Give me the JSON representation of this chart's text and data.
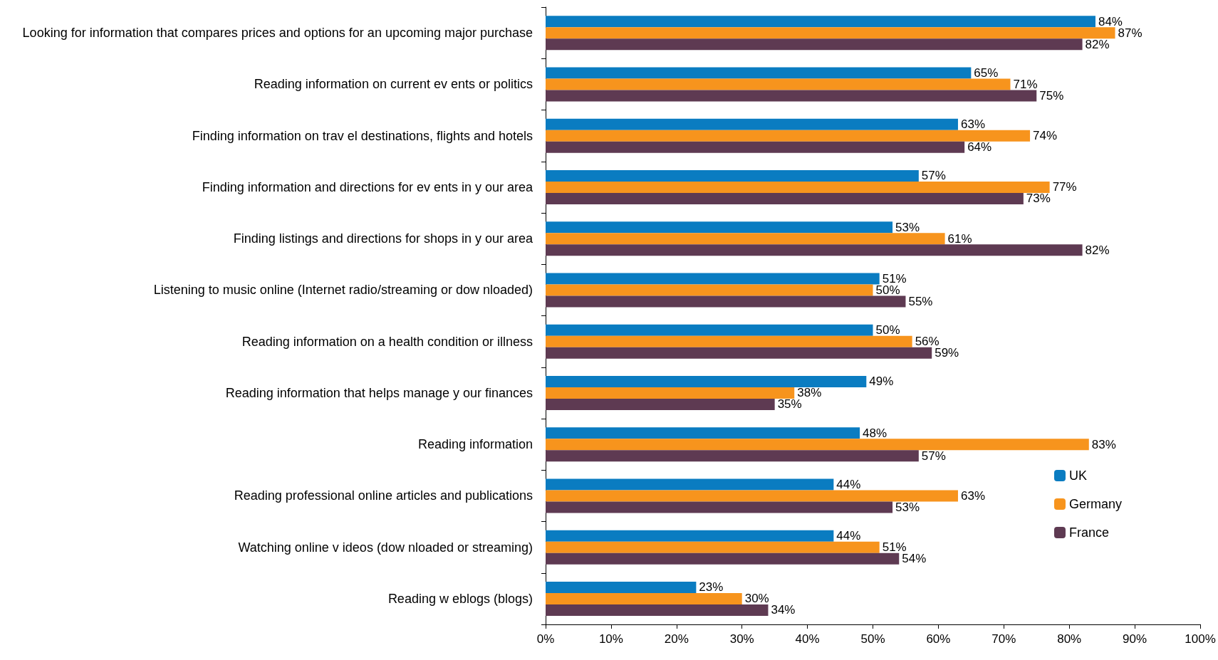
{
  "chart_data": {
    "type": "bar",
    "orientation": "horizontal",
    "categories": [
      "Looking for information that compares prices and options for an upcoming major purchase",
      "Reading information on current ev ents or politics",
      "Finding information on trav el destinations, flights and hotels",
      "Finding information and directions for ev ents in y our area",
      "Finding listings and directions for shops in y our area",
      "Listening to music online (Internet radio/streaming or dow nloaded)",
      "Reading information on a health condition or illness",
      "Reading information that helps manage y our finances",
      "Reading information",
      "Reading professional online articles and publications",
      "Watching online v ideos (dow nloaded or streaming)",
      "Reading w eblogs (blogs)"
    ],
    "series": [
      {
        "name": "UK",
        "color": "#0a7cc1",
        "values": [
          84,
          65,
          63,
          57,
          53,
          51,
          50,
          49,
          48,
          44,
          44,
          23
        ],
        "value_labels": [
          "84%",
          "65%",
          "63%",
          "57%",
          "53%",
          "51%",
          "50%",
          "49%",
          "48%",
          "44%",
          "44%",
          "23%"
        ]
      },
      {
        "name": "Germany",
        "color": "#f7941d",
        "values": [
          87,
          71,
          74,
          77,
          61,
          50,
          56,
          38,
          83,
          63,
          51,
          30
        ],
        "value_labels": [
          "87%",
          "71%",
          "74%",
          "77%",
          "61%",
          "50%",
          "56%",
          "38%",
          "83%",
          "63%",
          "51%",
          "30%"
        ]
      },
      {
        "name": "France",
        "color": "#5e3a52",
        "values": [
          82,
          75,
          64,
          73,
          82,
          55,
          59,
          35,
          57,
          53,
          54,
          34
        ],
        "value_labels": [
          "82%",
          "75%",
          "64%",
          "73%",
          "82%",
          "55%",
          "59%",
          "35%",
          "57%",
          "53%",
          "54%",
          "34%"
        ]
      }
    ],
    "xlim": [
      0,
      100
    ],
    "xticks": [
      {
        "value": 0,
        "label": "0%"
      },
      {
        "value": 10,
        "label": "10%"
      },
      {
        "value": 20,
        "label": "20%"
      },
      {
        "value": 30,
        "label": "30%"
      },
      {
        "value": 40,
        "label": "40%"
      },
      {
        "value": 50,
        "label": "50%"
      },
      {
        "value": 60,
        "label": "60%"
      },
      {
        "value": 70,
        "label": "70%"
      },
      {
        "value": 80,
        "label": "80%"
      },
      {
        "value": 90,
        "label": "90%"
      },
      {
        "value": 100,
        "label": "100%"
      }
    ],
    "grid": false,
    "legend": "bottom right"
  }
}
